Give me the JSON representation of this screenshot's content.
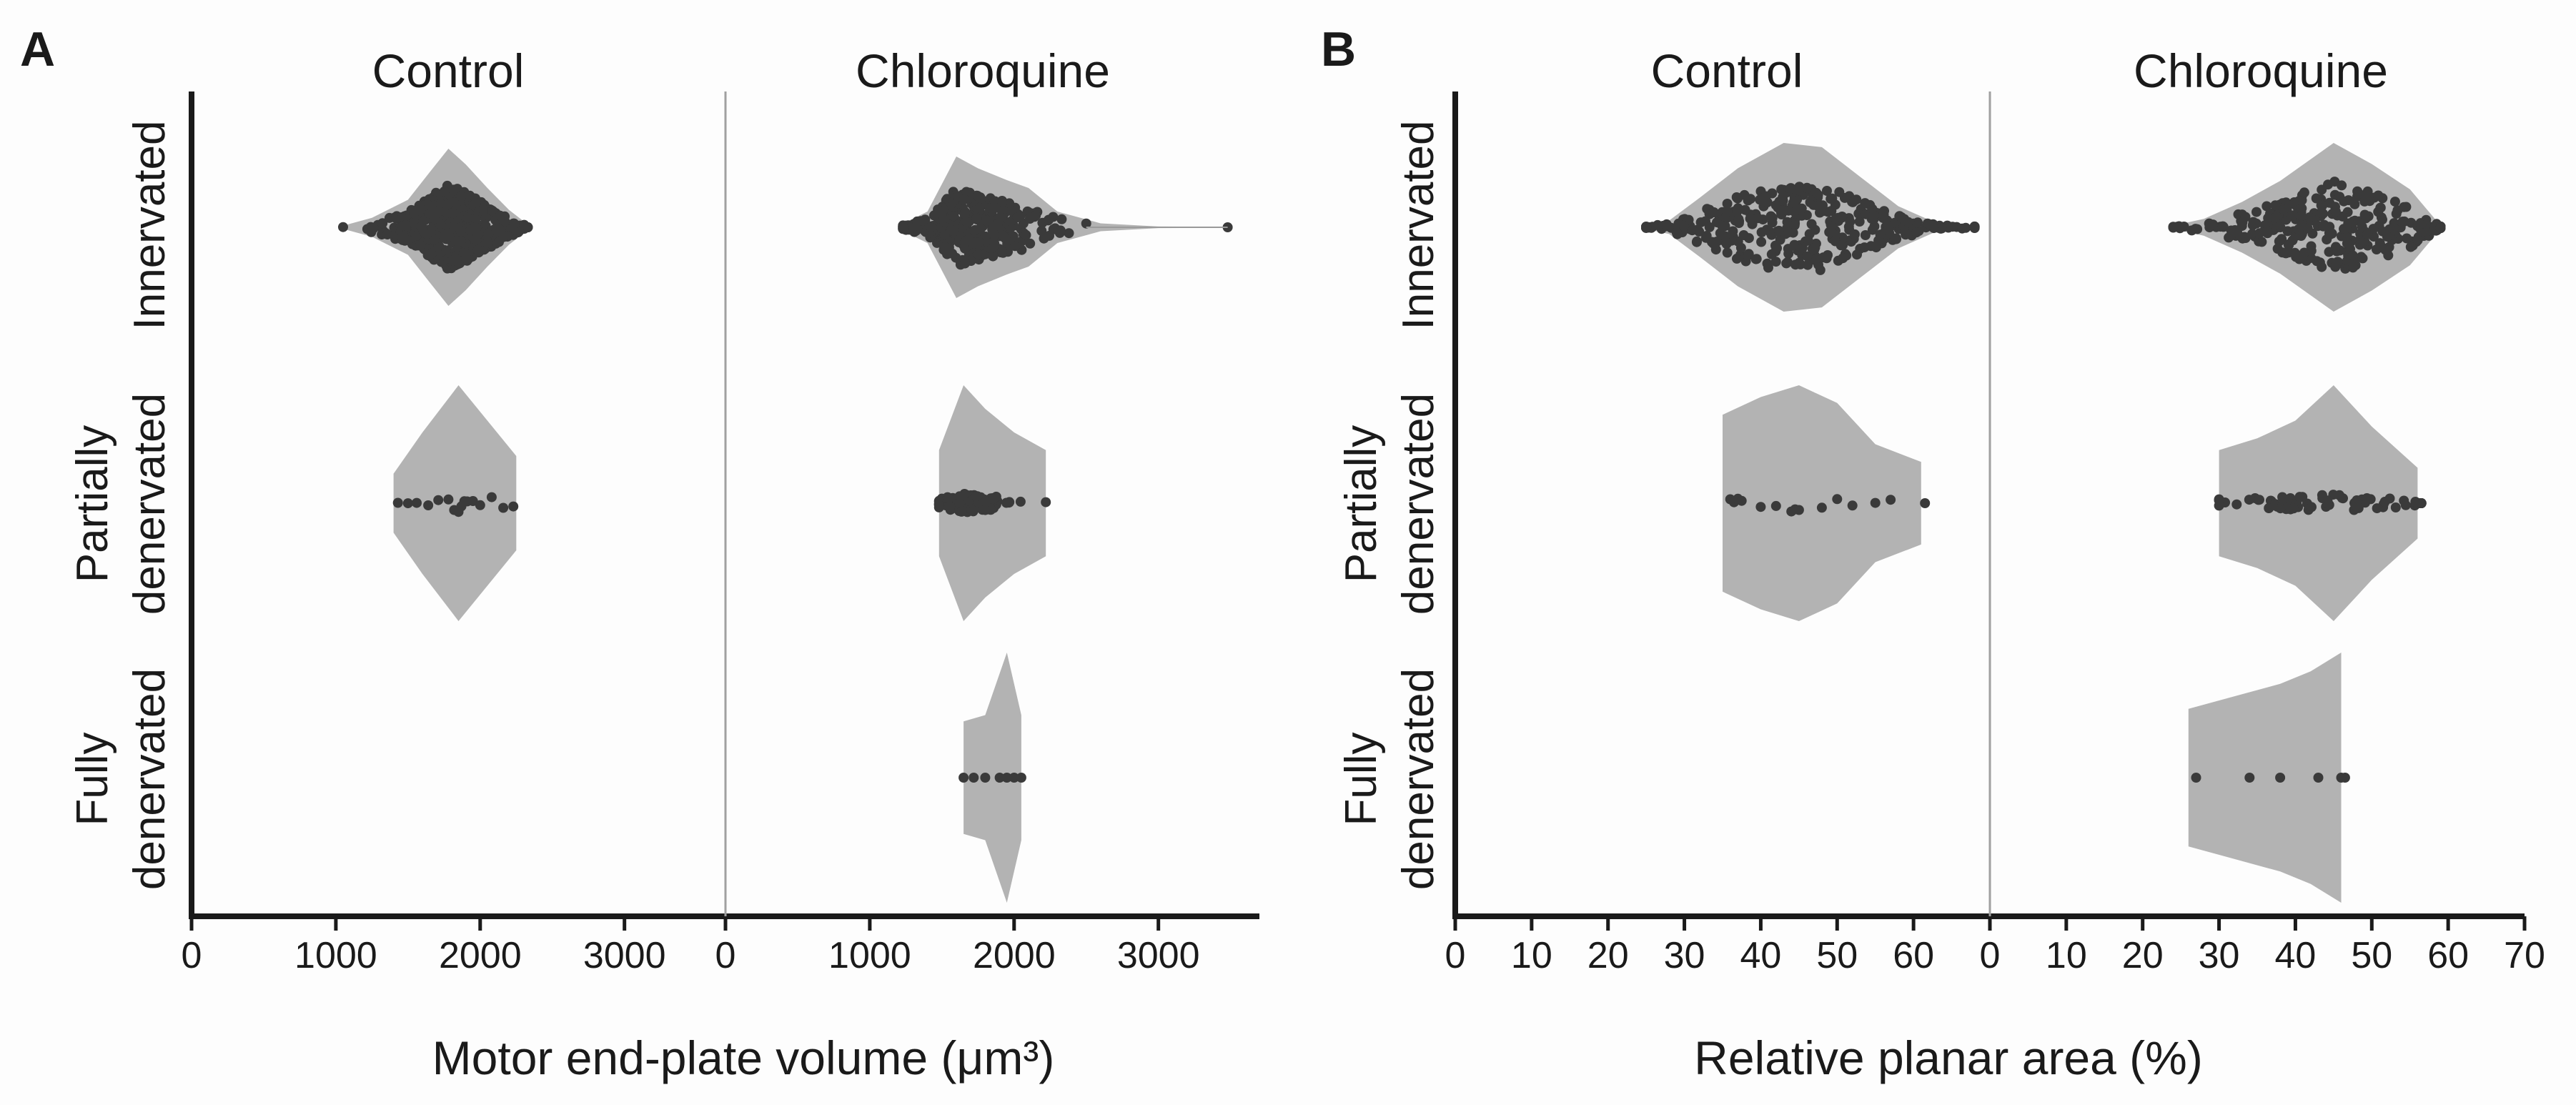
{
  "chart_data": [
    {
      "panel": "A",
      "type": "violin-swarm",
      "group_labels": [
        "Control",
        "Chloroquine"
      ],
      "row_labels": [
        [
          "Innervated"
        ],
        [
          "Partially",
          "denervated"
        ],
        [
          "Fully",
          "denervated"
        ]
      ],
      "xlabel": "Motor end-plate volume (μm³)",
      "xlim": [
        0,
        3700
      ],
      "ticks": [
        0,
        1000,
        2000,
        3000
      ],
      "cells": [
        {
          "group": "Control",
          "row": "Innervated",
          "violin": [
            [
              1050,
              0.02
            ],
            [
              1250,
              0.12
            ],
            [
              1500,
              0.35
            ],
            [
              1650,
              0.7
            ],
            [
              1780,
              1.0
            ],
            [
              1900,
              0.8
            ],
            [
              2050,
              0.5
            ],
            [
              2200,
              0.22
            ],
            [
              2320,
              0.05
            ]
          ],
          "points": {
            "min": 1050,
            "max": 2330,
            "center": 1800,
            "spread": 220,
            "n": 520
          }
        },
        {
          "group": "Control",
          "row": "Partially denervated",
          "violin": [
            [
              1400,
              0.25
            ],
            [
              1600,
              0.6
            ],
            [
              1850,
              1.0
            ],
            [
              2050,
              0.7
            ],
            [
              2250,
              0.4
            ]
          ],
          "points": {
            "values": [
              1430,
              1500,
              1560,
              1640,
              1710,
              1780,
              1820,
              1850,
              1870,
              1890,
              1910,
              1950,
              2000,
              2080,
              2160,
              2230
            ],
            "spread": 8
          }
        },
        {
          "group": "Chloroquine",
          "row": "Innervated",
          "violin": [
            [
              1200,
              0.02
            ],
            [
              1400,
              0.2
            ],
            [
              1600,
              0.9
            ],
            [
              1750,
              0.75
            ],
            [
              1950,
              0.6
            ],
            [
              2100,
              0.5
            ],
            [
              2300,
              0.2
            ],
            [
              2600,
              0.05
            ],
            [
              3000,
              0.01
            ],
            [
              3480,
              0.005
            ]
          ],
          "points": {
            "min": 1230,
            "max": 2500,
            "center": 1700,
            "spread": 250,
            "n": 340,
            "outliers": [
              3480
            ]
          }
        },
        {
          "group": "Chloroquine",
          "row": "Partially denervated",
          "violin": [
            [
              1480,
              0.45
            ],
            [
              1650,
              1.0
            ],
            [
              1800,
              0.8
            ],
            [
              2000,
              0.6
            ],
            [
              2220,
              0.45
            ]
          ],
          "points": {
            "min": 1480,
            "max": 2220,
            "center": 1700,
            "spread": 150,
            "n": 95
          }
        },
        {
          "group": "Chloroquine",
          "row": "Fully denervated",
          "violin": [
            [
              1650,
              0.45
            ],
            [
              1800,
              0.5
            ],
            [
              1950,
              1.0
            ],
            [
              2050,
              0.5
            ]
          ],
          "points": {
            "values": [
              1650,
              1720,
              1800,
              1900,
              1950,
              2000,
              2050
            ],
            "spread": 0
          }
        }
      ]
    },
    {
      "panel": "B",
      "type": "violin-swarm",
      "group_labels": [
        "Control",
        "Chloroquine"
      ],
      "row_labels": [
        [
          "Innervated"
        ],
        [
          "Partially",
          "denervated"
        ],
        [
          "Fully",
          "denervated"
        ]
      ],
      "xlabel": "Relative planar area (%)",
      "xlim": [
        0,
        70
      ],
      "ticks_left": [
        0,
        10,
        20,
        30,
        40,
        50,
        60
      ],
      "ticks_right": [
        0,
        10,
        20,
        30,
        40,
        50,
        60,
        70
      ],
      "cells": [
        {
          "group": "Control",
          "row": "Innervated",
          "violin": [
            [
              25,
              0.02
            ],
            [
              28,
              0.08
            ],
            [
              32,
              0.35
            ],
            [
              37,
              0.7
            ],
            [
              43,
              1.0
            ],
            [
              48,
              0.95
            ],
            [
              53,
              0.6
            ],
            [
              58,
              0.25
            ],
            [
              63,
              0.05
            ],
            [
              68,
              0.02
            ]
          ],
          "points": {
            "min": 25,
            "max": 68,
            "center": 45,
            "spread": 11,
            "n": 360
          }
        },
        {
          "group": "Control",
          "row": "Partially denervated",
          "violin": [
            [
              35,
              0.75
            ],
            [
              40,
              0.9
            ],
            [
              45,
              1.0
            ],
            [
              50,
              0.85
            ],
            [
              55,
              0.5
            ],
            [
              61,
              0.35
            ]
          ],
          "points": {
            "values": [
              36,
              36.5,
              37,
              37.5,
              40,
              42,
              44,
              44.5,
              45,
              48,
              50,
              52,
              55,
              57,
              61.5
            ],
            "spread": 0.6
          }
        },
        {
          "group": "Chloroquine",
          "row": "Innervated",
          "violin": [
            [
              24,
              0.02
            ],
            [
              28,
              0.1
            ],
            [
              33,
              0.3
            ],
            [
              38,
              0.55
            ],
            [
              45,
              1.0
            ],
            [
              50,
              0.75
            ],
            [
              55,
              0.45
            ],
            [
              59,
              0.02
            ]
          ],
          "points": {
            "min": 24,
            "max": 59,
            "center": 45,
            "spread": 9,
            "n": 300
          }
        },
        {
          "group": "Chloroquine",
          "row": "Partially denervated",
          "violin": [
            [
              30,
              0.45
            ],
            [
              35,
              0.55
            ],
            [
              40,
              0.7
            ],
            [
              45,
              1.0
            ],
            [
              50,
              0.65
            ],
            [
              56,
              0.3
            ]
          ],
          "points": {
            "min": 30,
            "max": 56.5,
            "center": 44,
            "spread": 7,
            "n": 70
          }
        },
        {
          "group": "Chloroquine",
          "row": "Fully denervated",
          "violin": [
            [
              26,
              0.55
            ],
            [
              32,
              0.65
            ],
            [
              38,
              0.75
            ],
            [
              42,
              0.85
            ],
            [
              46,
              1.0
            ]
          ],
          "points": {
            "values": [
              27,
              34,
              38,
              43,
              46,
              46.5
            ],
            "spread": 0
          }
        }
      ]
    }
  ]
}
